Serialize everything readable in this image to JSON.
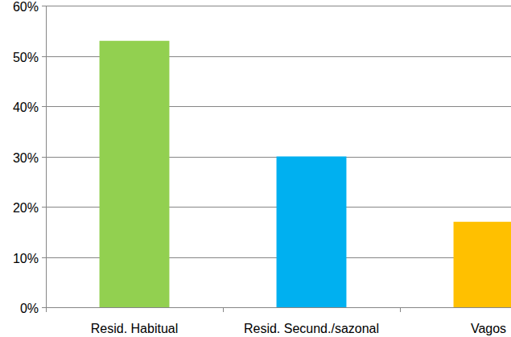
{
  "chart_data": {
    "type": "bar",
    "categories": [
      "Resid. Habitual",
      "Resid. Secund./sazonal",
      "Vagos"
    ],
    "values": [
      53,
      30,
      17
    ],
    "colors": [
      "#92d050",
      "#00b0f0",
      "#ffc000"
    ],
    "ylim": [
      0,
      60
    ],
    "yticks": [
      {
        "value": 0,
        "label": "0%"
      },
      {
        "value": 10,
        "label": "10%"
      },
      {
        "value": 20,
        "label": "20%"
      },
      {
        "value": 30,
        "label": "30%"
      },
      {
        "value": 40,
        "label": "40%"
      },
      {
        "value": 50,
        "label": "50%"
      },
      {
        "value": 60,
        "label": "60%"
      }
    ],
    "grid": true
  }
}
